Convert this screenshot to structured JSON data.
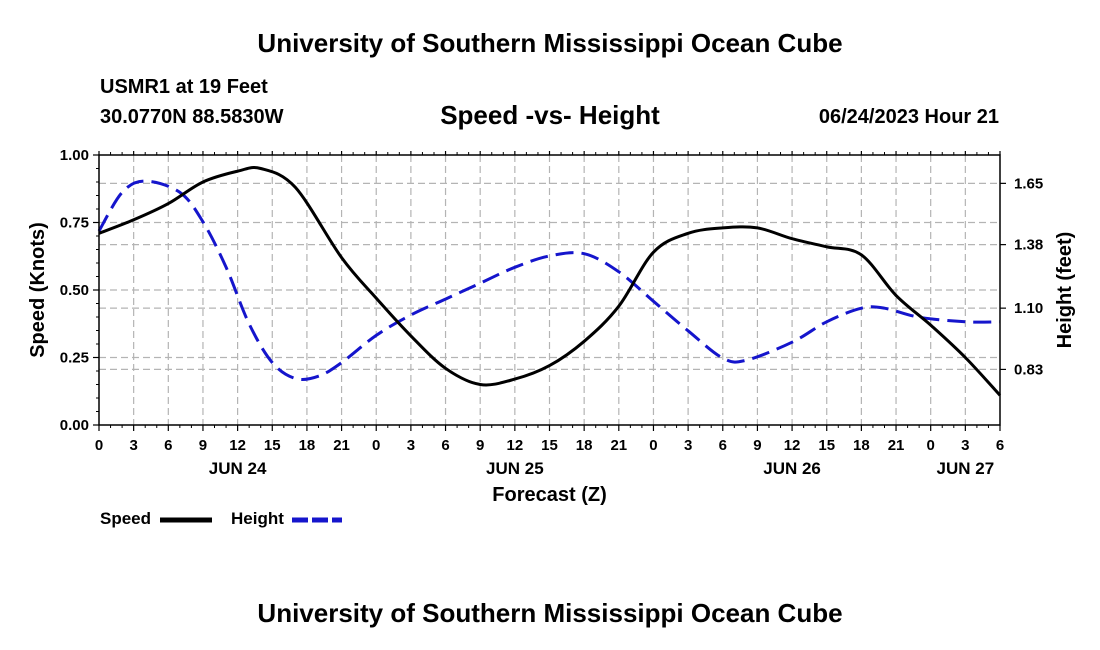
{
  "header": {
    "title": "University of Southern Mississippi Ocean Cube",
    "station": "USMR1 at 19 Feet",
    "coordinates": "30.0770N  88.5830W",
    "subtitle": "Speed -vs- Height",
    "datetime": "06/24/2023 Hour 21"
  },
  "footer": {
    "title": "University of Southern Mississippi Ocean Cube"
  },
  "chart_data": {
    "type": "line",
    "title": "Speed -vs- Height",
    "xlabel": "Forecast (Z)",
    "ylabel": "Speed (Knots)",
    "y2label": "Height (feet)",
    "grid": true,
    "x_hours": [
      0,
      3,
      6,
      9,
      12,
      15,
      18,
      21,
      24,
      27,
      30,
      33,
      36,
      39,
      42,
      45,
      48,
      51,
      54,
      57,
      60,
      63,
      66,
      69,
      72,
      75,
      78
    ],
    "x_tick_labels": [
      "0",
      "3",
      "6",
      "9",
      "12",
      "15",
      "18",
      "21",
      "0",
      "3",
      "6",
      "9",
      "12",
      "15",
      "18",
      "21",
      "0",
      "3",
      "6",
      "9",
      "12",
      "15",
      "18",
      "21",
      "0",
      "3",
      "6"
    ],
    "date_labels": [
      {
        "label": "JUN 24",
        "hour": 12
      },
      {
        "label": "JUN 25",
        "hour": 36
      },
      {
        "label": "JUN 26",
        "hour": 60
      },
      {
        "label": "JUN 27",
        "hour": 75
      }
    ],
    "ylim": [
      0,
      1
    ],
    "y_ticks": [
      0,
      0.25,
      0.5,
      0.75,
      1.0
    ],
    "y_tick_labels": [
      "0.00",
      "0.25",
      "0.50",
      "0.75",
      "1.00"
    ],
    "y2lim": [
      0.585,
      1.775
    ],
    "y2_ticks": [
      0.83,
      1.1,
      1.38,
      1.65
    ],
    "y2_tick_labels": [
      "0.83",
      "1.10",
      "1.38",
      "1.65"
    ],
    "series": [
      {
        "name": "Speed",
        "axis": "left",
        "color": "#000000",
        "dash": "solid",
        "x": [
          0,
          3,
          6,
          9,
          12,
          14,
          17,
          21,
          24,
          27,
          30,
          33,
          36,
          39,
          42,
          45,
          48,
          51,
          54,
          57,
          60,
          63,
          66,
          69,
          72,
          75,
          78
        ],
        "values": [
          0.71,
          0.76,
          0.82,
          0.9,
          0.94,
          0.95,
          0.88,
          0.62,
          0.47,
          0.33,
          0.21,
          0.15,
          0.17,
          0.22,
          0.31,
          0.44,
          0.64,
          0.71,
          0.73,
          0.73,
          0.69,
          0.66,
          0.63,
          0.48,
          0.37,
          0.25,
          0.11
        ]
      },
      {
        "name": "Height",
        "axis": "right",
        "color": "#1515cc",
        "dash": "dashed",
        "x": [
          0,
          2,
          4,
          7,
          9,
          11,
          13,
          15,
          17,
          19,
          21,
          24,
          27,
          30,
          33,
          36,
          39,
          42,
          45,
          48,
          51,
          54,
          56,
          60,
          63,
          66,
          68,
          71,
          75,
          78
        ],
        "values": [
          1.44,
          1.61,
          1.66,
          1.61,
          1.48,
          1.28,
          1.03,
          0.86,
          0.79,
          0.8,
          0.86,
          0.98,
          1.07,
          1.14,
          1.21,
          1.28,
          1.33,
          1.34,
          1.26,
          1.13,
          1.0,
          0.88,
          0.87,
          0.95,
          1.04,
          1.1,
          1.1,
          1.06,
          1.04,
          1.04
        ]
      }
    ],
    "legend": [
      {
        "label": "Speed",
        "color": "#000000",
        "dash": "solid"
      },
      {
        "label": "Height",
        "color": "#1515cc",
        "dash": "dashed"
      }
    ]
  }
}
